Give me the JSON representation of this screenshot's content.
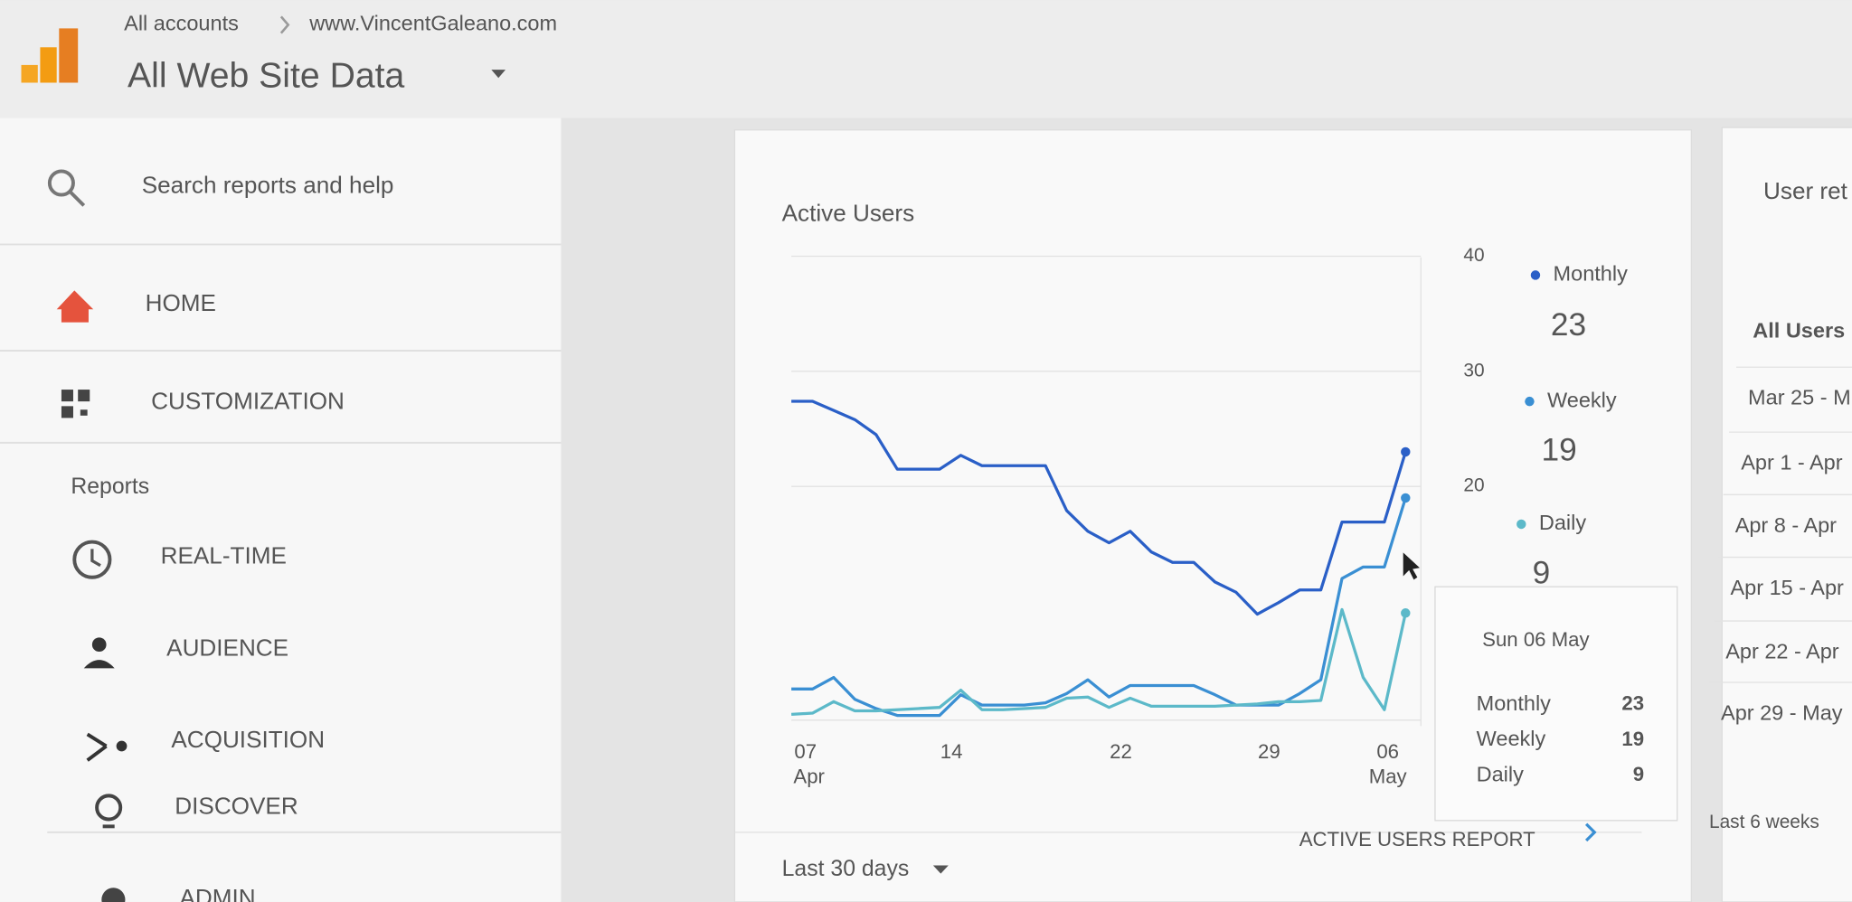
{
  "header": {
    "breadcrumb": [
      "All accounts",
      "www.VincentGaleano.com"
    ],
    "title": "All Web Site Data"
  },
  "sidebar": {
    "search": "Search reports and help",
    "items": [
      "HOME",
      "CUSTOMIZATION"
    ],
    "section": "Reports",
    "reports": [
      "REAL-TIME",
      "AUDIENCE",
      "ACQUISITION",
      "DISCOVER",
      "ADMIN"
    ]
  },
  "chart_data": {
    "type": "line",
    "title": "Active Users",
    "categories": [
      "07",
      null,
      null,
      null,
      null,
      null,
      null,
      "14",
      null,
      null,
      null,
      null,
      null,
      null,
      null,
      "22",
      null,
      null,
      null,
      null,
      null,
      null,
      "29",
      null,
      null,
      null,
      null,
      null,
      null,
      "06"
    ],
    "category_months": [
      "Apr",
      null,
      null,
      null,
      null,
      null,
      null,
      null,
      null,
      null,
      null,
      null,
      null,
      null,
      null,
      null,
      null,
      null,
      null,
      null,
      null,
      null,
      null,
      null,
      null,
      null,
      null,
      null,
      null,
      "May"
    ],
    "series": [
      {
        "name": "Monthly",
        "color": "#2a5fc7",
        "values": [
          27.4,
          27.4,
          26.6,
          25.8,
          24.5,
          21.5,
          21.5,
          21.5,
          22.7,
          21.8,
          21.8,
          21.8,
          21.8,
          17.9,
          16.1,
          15.1,
          16.1,
          14.3,
          13.4,
          13.4,
          11.7,
          10.8,
          8.9,
          9.9,
          11,
          11,
          16.9,
          16.9,
          16.9,
          23
        ]
      },
      {
        "name": "Weekly",
        "color": "#3a8fd3",
        "values": [
          2.4,
          2.4,
          3.4,
          1.5,
          0.7,
          0.1,
          0.1,
          0.1,
          1.9,
          1,
          1,
          1,
          1.2,
          2,
          3.2,
          1.7,
          2.7,
          2.7,
          2.7,
          2.7,
          1.9,
          1,
          1,
          1,
          2,
          3.2,
          12,
          13,
          13,
          19
        ]
      },
      {
        "name": "Daily",
        "color": "#5cb9c9",
        "values": [
          0.2,
          0.3,
          1.3,
          0.5,
          0.5,
          0.6,
          0.7,
          0.8,
          2.3,
          0.6,
          0.6,
          0.7,
          0.8,
          1.6,
          1.7,
          0.8,
          1.6,
          0.9,
          0.9,
          0.9,
          0.9,
          1,
          1.1,
          1.3,
          1.3,
          1.4,
          9.3,
          3.4,
          0.6,
          9
        ]
      }
    ],
    "ylim": [
      0,
      40
    ],
    "yticks": [
      20,
      30,
      40
    ],
    "grid": true,
    "tooltip": {
      "date": "Sun 06 May"
    },
    "link": "ACTIVE USERS REPORT",
    "footer": "Last 30 days"
  },
  "retention": {
    "title": "User ret",
    "segment": "All Users",
    "rows": [
      "Mar 25 - M",
      "Apr 1 - Apr",
      "Apr 8 - Apr",
      "Apr 15 - Apr",
      "Apr 22 - Apr",
      "Apr 29 - May"
    ],
    "footer": "Last 6 weeks"
  }
}
